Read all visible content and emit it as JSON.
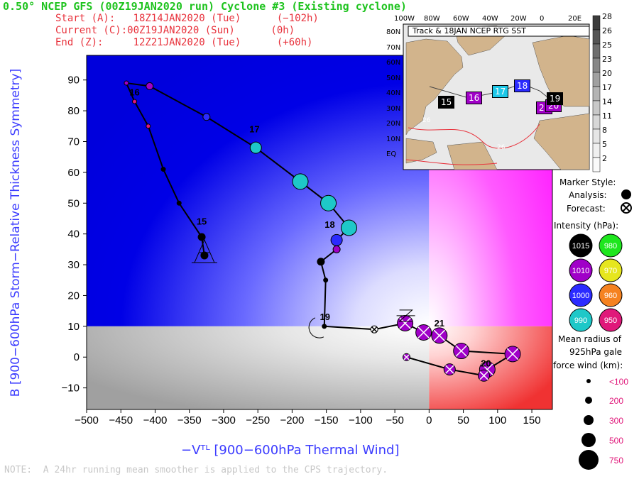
{
  "header": {
    "title": "0.50° NCEP GFS (00Z19JAN2020 run) Cyclone #3 (Existing cyclone)",
    "start": "Start (A):   18Z14JAN2020 (Tue)      (−102h)",
    "current": "Current (C):00Z19JAN2020 (Sun)      (0h)",
    "end": "End (Z):     12Z21JAN2020 (Tue)      (+60h)"
  },
  "axes": {
    "ylabel": "B [900−600hPa Storm−Relative Thickness Symmetry]",
    "xlabel": "−Vᵀᴸ [900−600hPa Thermal Wind]",
    "note": "NOTE:  A 24hr running mean smoother is applied to the CPS trajectory."
  },
  "chart_data": {
    "type": "scatter",
    "xlim": [
      -500,
      180
    ],
    "ylim": [
      -17,
      98
    ],
    "x_ticks": [
      -500,
      -450,
      -400,
      -350,
      -300,
      -250,
      -200,
      -150,
      -100,
      -50,
      0,
      50,
      100,
      150
    ],
    "y_ticks": [
      -10,
      0,
      10,
      20,
      30,
      40,
      50,
      60,
      70,
      80,
      90
    ],
    "annotations": [
      {
        "label": "15",
        "x": -332,
        "y": 43
      },
      {
        "label": "16",
        "x": -430,
        "y": 85
      },
      {
        "label": "17",
        "x": -255,
        "y": 73
      },
      {
        "label": "18",
        "x": -145,
        "y": 42
      },
      {
        "label": "19",
        "x": -152,
        "y": 12
      },
      {
        "label": "20",
        "x": 83,
        "y": -3
      },
      {
        "label": "21",
        "x": 15,
        "y": 10
      }
    ],
    "trajectory": [
      {
        "x": -328,
        "y": 33,
        "type": "analysis",
        "size": "small",
        "color": "#000000"
      },
      {
        "x": -332,
        "y": 39,
        "type": "analysis",
        "size": "small",
        "color": "#000000"
      },
      {
        "x": -365,
        "y": 50,
        "type": "analysis",
        "size": "tiny",
        "color": "#000000"
      },
      {
        "x": -388,
        "y": 61,
        "type": "analysis",
        "size": "tiny",
        "color": "#000000"
      },
      {
        "x": -410,
        "y": 75,
        "type": "analysis",
        "size": "tiny",
        "color": "#e0187a"
      },
      {
        "x": -430,
        "y": 83,
        "type": "analysis",
        "size": "tiny",
        "color": "#e0187a"
      },
      {
        "x": -442,
        "y": 89,
        "type": "analysis",
        "size": "tiny",
        "color": "#a000c8"
      },
      {
        "x": -408,
        "y": 88,
        "type": "analysis",
        "size": "small",
        "color": "#a000c8"
      },
      {
        "x": -325,
        "y": 78,
        "type": "analysis",
        "size": "small",
        "color": "#2b2bff"
      },
      {
        "x": -253,
        "y": 68,
        "type": "analysis",
        "size": "medium",
        "color": "#1ec8c8"
      },
      {
        "x": -188,
        "y": 57,
        "type": "analysis",
        "size": "large",
        "color": "#1ec8c8"
      },
      {
        "x": -147,
        "y": 50,
        "type": "analysis",
        "size": "large",
        "color": "#1ec8c8"
      },
      {
        "x": -117,
        "y": 42,
        "type": "analysis",
        "size": "large",
        "color": "#1ec8c8"
      },
      {
        "x": -135,
        "y": 38,
        "type": "analysis",
        "size": "medium",
        "color": "#2b2bff"
      },
      {
        "x": -135,
        "y": 35,
        "type": "analysis",
        "size": "small",
        "color": "#a000c8"
      },
      {
        "x": -158,
        "y": 31,
        "type": "analysis",
        "size": "small",
        "color": "#000000"
      },
      {
        "x": -151,
        "y": 25,
        "type": "analysis",
        "size": "tiny",
        "color": "#000000"
      },
      {
        "x": -153,
        "y": 10,
        "type": "analysis",
        "size": "tiny",
        "color": "#000000"
      },
      {
        "x": -80,
        "y": 9,
        "type": "forecast",
        "size": "small",
        "color": "#ffffff"
      },
      {
        "x": -35,
        "y": 11,
        "type": "forecast",
        "size": "large",
        "color": "#a000c8"
      },
      {
        "x": -8,
        "y": 8,
        "type": "forecast",
        "size": "large",
        "color": "#a000c8"
      },
      {
        "x": 15,
        "y": 7,
        "type": "forecast",
        "size": "large",
        "color": "#a000c8"
      },
      {
        "x": 47,
        "y": 2,
        "type": "forecast",
        "size": "large",
        "color": "#a000c8"
      },
      {
        "x": 122,
        "y": 1,
        "type": "forecast",
        "size": "large",
        "color": "#a000c8"
      },
      {
        "x": 85,
        "y": -4,
        "type": "forecast",
        "size": "large",
        "color": "#a000c8"
      },
      {
        "x": 80,
        "y": -6,
        "type": "forecast",
        "size": "medium",
        "color": "#a000c8"
      },
      {
        "x": 30,
        "y": -4,
        "type": "forecast",
        "size": "medium",
        "color": "#a000c8"
      },
      {
        "x": -33,
        "y": 0,
        "type": "forecast",
        "size": "small",
        "color": "#a000c8"
      }
    ]
  },
  "inset": {
    "title": "Track & 18JAN NCEP RTG SST",
    "lon_labels": [
      "100W",
      "80W",
      "60W",
      "40W",
      "20W",
      "0",
      "20E"
    ],
    "lat_labels": [
      "80N",
      "70N",
      "60N",
      "50N",
      "40N",
      "30N",
      "20N",
      "10N",
      "EQ"
    ],
    "colorbar": [
      "28",
      "26",
      "25",
      "23",
      "20",
      "17",
      "14",
      "11",
      "8",
      "5",
      "2"
    ],
    "boxes": [
      {
        "label": "15",
        "color": "#000000"
      },
      {
        "label": "16",
        "color": "#a000c8"
      },
      {
        "label": "17",
        "color": "#1ec8e8"
      },
      {
        "label": "18",
        "color": "#2b2bff"
      },
      {
        "label": "21",
        "color": "#a000c8"
      },
      {
        "label": "20",
        "color": "#a000c8"
      },
      {
        "label": "19",
        "color": "#000000"
      }
    ],
    "sst_labels": [
      "26",
      "26"
    ]
  },
  "legend": {
    "marker_style": "Marker Style:",
    "analysis": "Analysis:",
    "forecast": "Forecast:",
    "intensity": "Intensity (hPa):",
    "intensity_items": [
      {
        "label": "1015",
        "color": "#000000"
      },
      {
        "label": "980",
        "color": "#1ee61e"
      },
      {
        "label": "1010",
        "color": "#a000c8"
      },
      {
        "label": "970",
        "color": "#e6e61e"
      },
      {
        "label": "1000",
        "color": "#2b2bff"
      },
      {
        "label": "960",
        "color": "#f58220"
      },
      {
        "label": "990",
        "color": "#1ec8c8"
      },
      {
        "label": "950",
        "color": "#e0187a"
      }
    ],
    "radius_title_1": "Mean radius of",
    "radius_title_2": "925hPa gale",
    "radius_title_3": "force wind (km):",
    "radius_items": [
      "<100",
      "200",
      "300",
      "500",
      "750"
    ]
  }
}
